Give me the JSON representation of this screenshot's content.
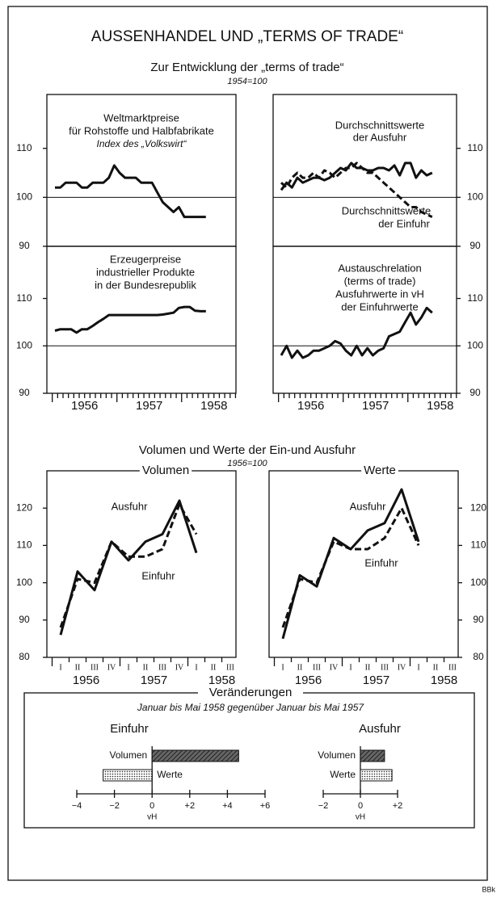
{
  "title": "AUSSENHANDEL UND „TERMS OF TRADE“",
  "subtitle": "Zur Entwicklung der „terms of trade“",
  "subtitle_note": "1954=100",
  "section2_title": "Volumen und Werte der Ein-und Ausfuhr",
  "section2_note": "1956=100",
  "section3_title": "Veränderungen",
  "section3_subtitle": "Januar bis Mai 1958 gegenüber Januar bis Mai 1957",
  "source": "BBk",
  "chart_data": [
    {
      "type": "line",
      "annotation": [
        "Weltmarktpreise",
        "für Rohstoffe und Halbfabrikate",
        "Index des „Volkswirt“"
      ],
      "values": [
        102,
        102,
        103,
        103,
        103,
        102,
        102,
        103,
        103,
        103,
        104,
        106.5,
        105,
        104,
        104,
        104,
        103,
        103,
        103,
        101,
        99,
        98,
        97,
        98,
        96,
        96,
        96,
        96,
        96
      ],
      "color": "#111111",
      "ylim": [
        90,
        121
      ],
      "yticks": [
        90,
        100,
        110
      ],
      "gridlines": [
        100
      ]
    },
    {
      "type": "line",
      "annotation": [
        "Erzeugerpreise",
        "industrieller Produkte",
        "in der Bundesrepublik"
      ],
      "values": [
        103.2,
        103.5,
        103.5,
        103.5,
        102.8,
        103.5,
        103.5,
        104.2,
        105,
        105.7,
        106.5,
        106.5,
        106.5,
        106.5,
        106.5,
        106.5,
        106.5,
        106.5,
        106.5,
        106.5,
        106.6,
        106.8,
        107,
        108,
        108.2,
        108.2,
        107.4,
        107.3,
        107.3
      ],
      "color": "#111111",
      "ylim": [
        90,
        121
      ],
      "yticks": [
        90,
        100,
        110
      ],
      "gridlines": [
        100
      ],
      "years": [
        "1956",
        "1957",
        "1958"
      ]
    },
    {
      "type": "line",
      "ylim": [
        90,
        121
      ],
      "yticks": [
        90,
        100,
        110
      ],
      "gridlines": [
        100
      ],
      "series": [
        {
          "label": [
            "Durchschnittswerte",
            "der Ausfuhr"
          ],
          "color": "#111111",
          "style": "solid",
          "values": [
            101.5,
            103,
            102,
            104,
            103,
            103.5,
            104,
            104,
            103.5,
            104,
            105,
            106,
            105.5,
            107,
            106,
            106,
            105.5,
            105.5,
            106,
            106,
            105.5,
            106.5,
            104.5,
            107,
            107,
            104,
            105.5,
            104.5,
            105
          ]
        },
        {
          "label": [
            "Durchschnittswerte",
            "der Einfuhr"
          ],
          "color": "#111111",
          "style": "dashed",
          "values": [
            103,
            102,
            104,
            105,
            104,
            104,
            105,
            104,
            105.5,
            105,
            104,
            105,
            106,
            106,
            107,
            106,
            105,
            105,
            104,
            103,
            102,
            101,
            100,
            99,
            98,
            98,
            97,
            96.5,
            96
          ]
        }
      ]
    },
    {
      "type": "line",
      "annotation": [
        "Austauschrelation",
        "(terms of trade)",
        "Ausfuhrwerte in vH",
        "der Einfuhrwerte"
      ],
      "values": [
        98,
        100,
        97.5,
        99,
        97.5,
        98,
        99,
        99,
        99.5,
        100,
        101,
        100.5,
        99,
        98,
        100,
        98,
        99.5,
        98,
        99,
        99.5,
        102,
        102.5,
        103,
        105,
        107,
        104.5,
        106,
        108,
        107
      ],
      "color": "#111111",
      "ylim": [
        90,
        121
      ],
      "yticks": [
        90,
        100,
        110
      ],
      "gridlines": [
        100
      ],
      "years": [
        "1956",
        "1957",
        "1958"
      ]
    },
    {
      "type": "line",
      "title": "Volumen",
      "categories": [
        "I",
        "II",
        "III",
        "IV",
        "I",
        "II",
        "III",
        "IV",
        "I",
        "II",
        "III"
      ],
      "years": [
        "1956",
        "1957",
        "1958"
      ],
      "ylim": [
        80,
        130
      ],
      "yticks": [
        80,
        90,
        100,
        110,
        120
      ],
      "series": [
        {
          "name": "Ausfuhr",
          "color": "#111111",
          "style": "solid",
          "values": [
            86,
            103,
            98,
            111,
            106,
            111,
            113,
            122,
            108,
            null,
            null
          ]
        },
        {
          "name": "Einfuhr",
          "color": "#111111",
          "style": "dashed",
          "values": [
            88,
            101,
            100,
            111,
            107,
            107,
            109,
            121,
            113,
            null,
            null
          ]
        }
      ]
    },
    {
      "type": "line",
      "title": "Werte",
      "categories": [
        "I",
        "II",
        "III",
        "IV",
        "I",
        "II",
        "III",
        "IV",
        "I",
        "II",
        "III"
      ],
      "years": [
        "1956",
        "1957",
        "1958"
      ],
      "ylim": [
        80,
        130
      ],
      "yticks": [
        80,
        90,
        100,
        110,
        120
      ],
      "series": [
        {
          "name": "Ausfuhr",
          "color": "#111111",
          "style": "solid",
          "values": [
            85,
            102,
            99,
            112,
            109,
            114,
            116,
            125,
            111,
            null,
            null
          ]
        },
        {
          "name": "Einfuhr",
          "color": "#111111",
          "style": "dashed",
          "values": [
            88,
            101,
            100,
            111,
            109,
            109,
            112,
            120,
            110,
            null,
            null
          ]
        }
      ]
    },
    {
      "type": "hbar",
      "title": "Einfuhr",
      "categories": [
        "Volumen",
        "Werte"
      ],
      "values": [
        4.6,
        -2.6
      ],
      "fills": [
        "hatched",
        "dotted"
      ],
      "xlim": [
        -4,
        6
      ],
      "xticks": [
        {
          "value": -4,
          "label": "−4"
        },
        {
          "value": -2,
          "label": "−2"
        },
        0,
        {
          "value": 2,
          "label": "+2"
        },
        {
          "value": 4,
          "label": "+4"
        },
        {
          "value": 6,
          "label": "+6"
        }
      ],
      "xlabel": "vH"
    },
    {
      "type": "hbar",
      "title": "Ausfuhr",
      "categories": [
        "Volumen",
        "Werte"
      ],
      "values": [
        1.3,
        1.7
      ],
      "fills": [
        "hatched",
        "dotted"
      ],
      "xlim": [
        -2,
        2
      ],
      "xticks": [
        {
          "value": -2,
          "label": "−2"
        },
        0,
        {
          "value": 2,
          "label": "+2"
        }
      ],
      "xlabel": "vH"
    }
  ]
}
